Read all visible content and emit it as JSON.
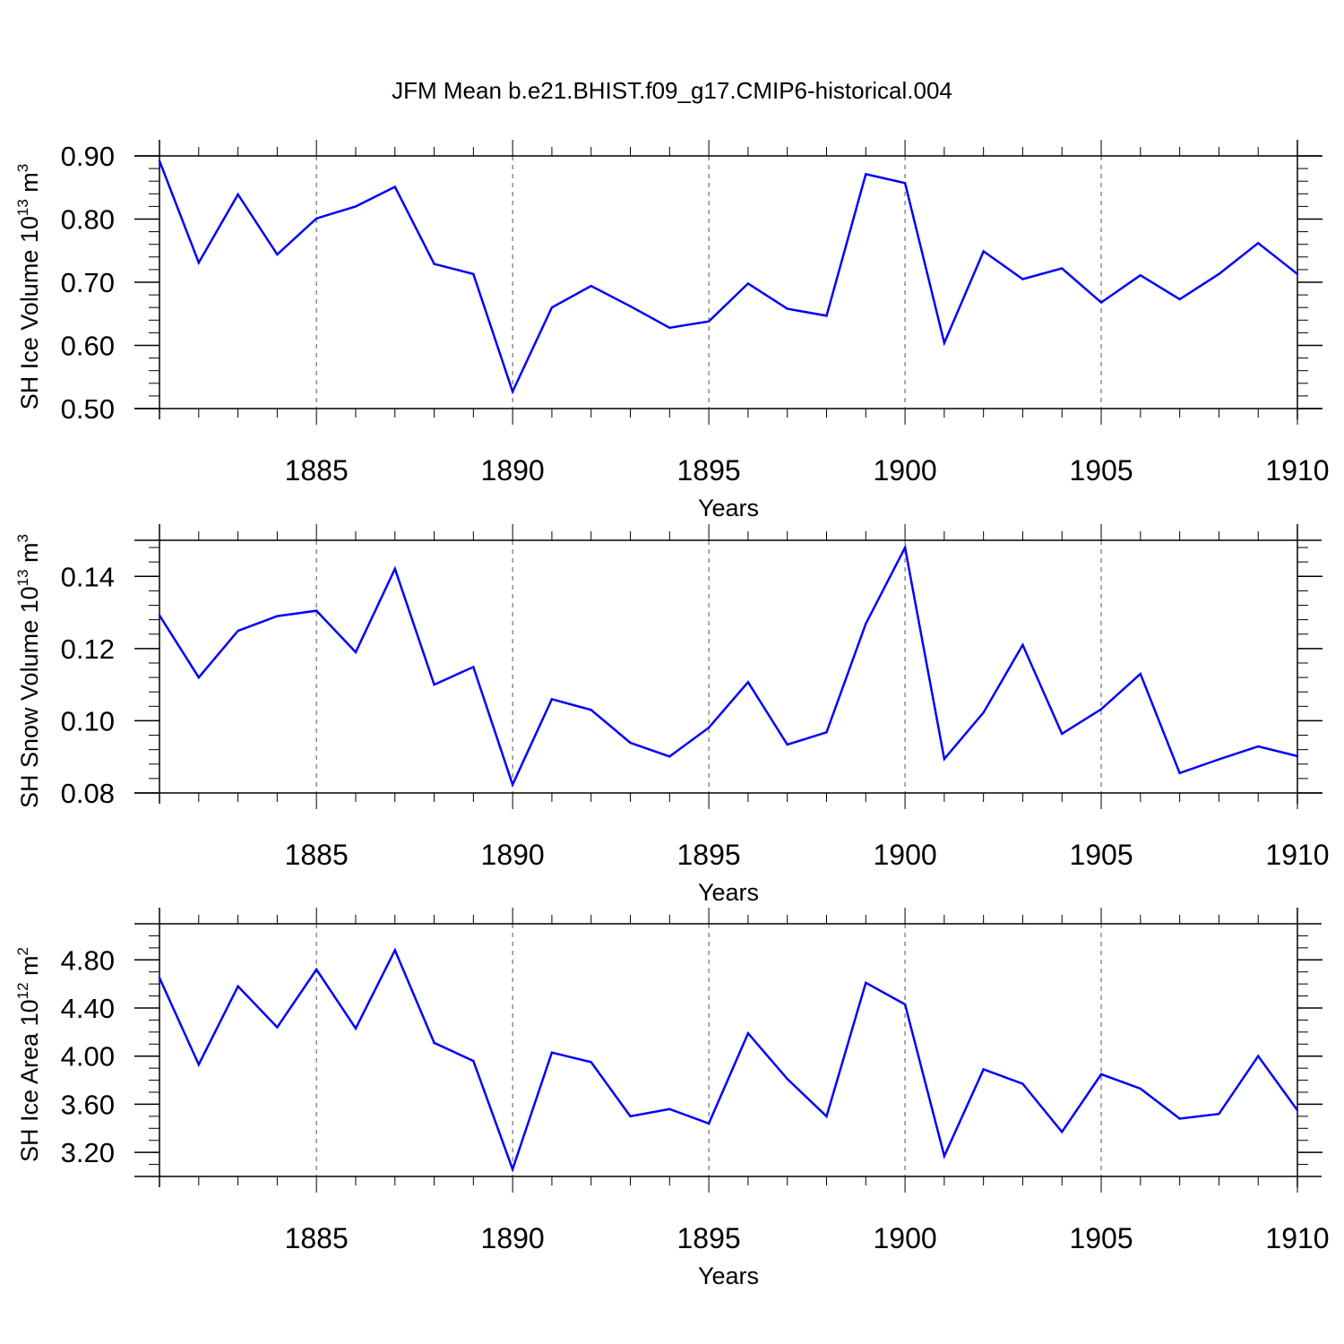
{
  "title": "JFM Mean b.e21.BHIST.f09_g17.CMIP6-historical.004",
  "colors": {
    "line": "#0000ff",
    "axis": "#000000",
    "grid": "#555555"
  },
  "chart_data": [
    {
      "type": "line",
      "ylabel": {
        "main": "SH Ice Volume 10",
        "sup": "13",
        "unit": " m",
        "unit_sup": "3"
      },
      "xlabel": "Years",
      "xlim": [
        1881,
        1910
      ],
      "ylim": [
        0.5,
        0.9
      ],
      "x_ticks": [
        1885,
        1890,
        1895,
        1900,
        1905,
        1910
      ],
      "y_ticks": [
        0.5,
        0.6,
        0.7,
        0.8,
        0.9
      ],
      "y_tick_labels": [
        "0.50",
        "0.60",
        "0.70",
        "0.80",
        "0.90"
      ],
      "y_minor_step": 0.02,
      "grid": "vertical dashed at major x ticks",
      "x": [
        1881,
        1882,
        1883,
        1884,
        1885,
        1886,
        1887,
        1888,
        1889,
        1890,
        1891,
        1892,
        1893,
        1894,
        1895,
        1896,
        1897,
        1898,
        1899,
        1900,
        1901,
        1902,
        1903,
        1904,
        1905,
        1906,
        1907,
        1908,
        1909,
        1910
      ],
      "values": [
        0.892,
        0.731,
        0.839,
        0.744,
        0.801,
        0.82,
        0.851,
        0.729,
        0.713,
        0.527,
        0.66,
        0.694,
        0.662,
        0.628,
        0.638,
        0.698,
        0.658,
        0.647,
        0.871,
        0.857,
        0.604,
        0.749,
        0.705,
        0.722,
        0.668,
        0.711,
        0.673,
        0.713,
        0.762,
        0.713
      ]
    },
    {
      "type": "line",
      "ylabel": {
        "main": "SH Snow Volume 10",
        "sup": "13",
        "unit": " m",
        "unit_sup": "3"
      },
      "xlabel": "Years",
      "xlim": [
        1881,
        1910
      ],
      "ylim": [
        0.08,
        0.15
      ],
      "x_ticks": [
        1885,
        1890,
        1895,
        1900,
        1905,
        1910
      ],
      "y_ticks": [
        0.08,
        0.1,
        0.12,
        0.14
      ],
      "y_tick_labels": [
        "0.08",
        "0.10",
        "0.12",
        "0.14"
      ],
      "y_minor_step": 0.004,
      "grid": "vertical dashed at major x ticks",
      "x": [
        1881,
        1882,
        1883,
        1884,
        1885,
        1886,
        1887,
        1888,
        1889,
        1890,
        1891,
        1892,
        1893,
        1894,
        1895,
        1896,
        1897,
        1898,
        1899,
        1900,
        1901,
        1902,
        1903,
        1904,
        1905,
        1906,
        1907,
        1908,
        1909,
        1910
      ],
      "values": [
        0.1292,
        0.112,
        0.1249,
        0.129,
        0.1305,
        0.119,
        0.1421,
        0.11,
        0.1149,
        0.0823,
        0.106,
        0.103,
        0.0939,
        0.0901,
        0.0981,
        0.1107,
        0.0934,
        0.0968,
        0.1269,
        0.148,
        0.0894,
        0.1023,
        0.121,
        0.0964,
        0.1032,
        0.113,
        0.0855,
        0.0893,
        0.0929,
        0.0902
      ]
    },
    {
      "type": "line",
      "ylabel": {
        "main": "SH Ice Area 10",
        "sup": "12",
        "unit": " m",
        "unit_sup": "2"
      },
      "xlabel": "Years",
      "xlim": [
        1881,
        1910
      ],
      "ylim": [
        3.0,
        5.1
      ],
      "x_ticks": [
        1885,
        1890,
        1895,
        1900,
        1905,
        1910
      ],
      "y_ticks": [
        3.2,
        3.6,
        4.0,
        4.4,
        4.8
      ],
      "y_tick_labels": [
        "3.20",
        "3.60",
        "4.00",
        "4.40",
        "4.80"
      ],
      "y_minor_step": 0.1,
      "grid": "vertical dashed at major x ticks",
      "x": [
        1881,
        1882,
        1883,
        1884,
        1885,
        1886,
        1887,
        1888,
        1889,
        1890,
        1891,
        1892,
        1893,
        1894,
        1895,
        1896,
        1897,
        1898,
        1899,
        1900,
        1901,
        1902,
        1903,
        1904,
        1905,
        1906,
        1907,
        1908,
        1909,
        1910
      ],
      "values": [
        4.65,
        3.93,
        4.58,
        4.24,
        4.72,
        4.23,
        4.88,
        4.11,
        3.96,
        3.06,
        4.03,
        3.95,
        3.5,
        3.56,
        3.44,
        4.19,
        3.81,
        3.5,
        4.61,
        4.43,
        3.17,
        3.89,
        3.77,
        3.37,
        3.85,
        3.73,
        3.48,
        3.52,
        4.0,
        3.55
      ]
    }
  ]
}
